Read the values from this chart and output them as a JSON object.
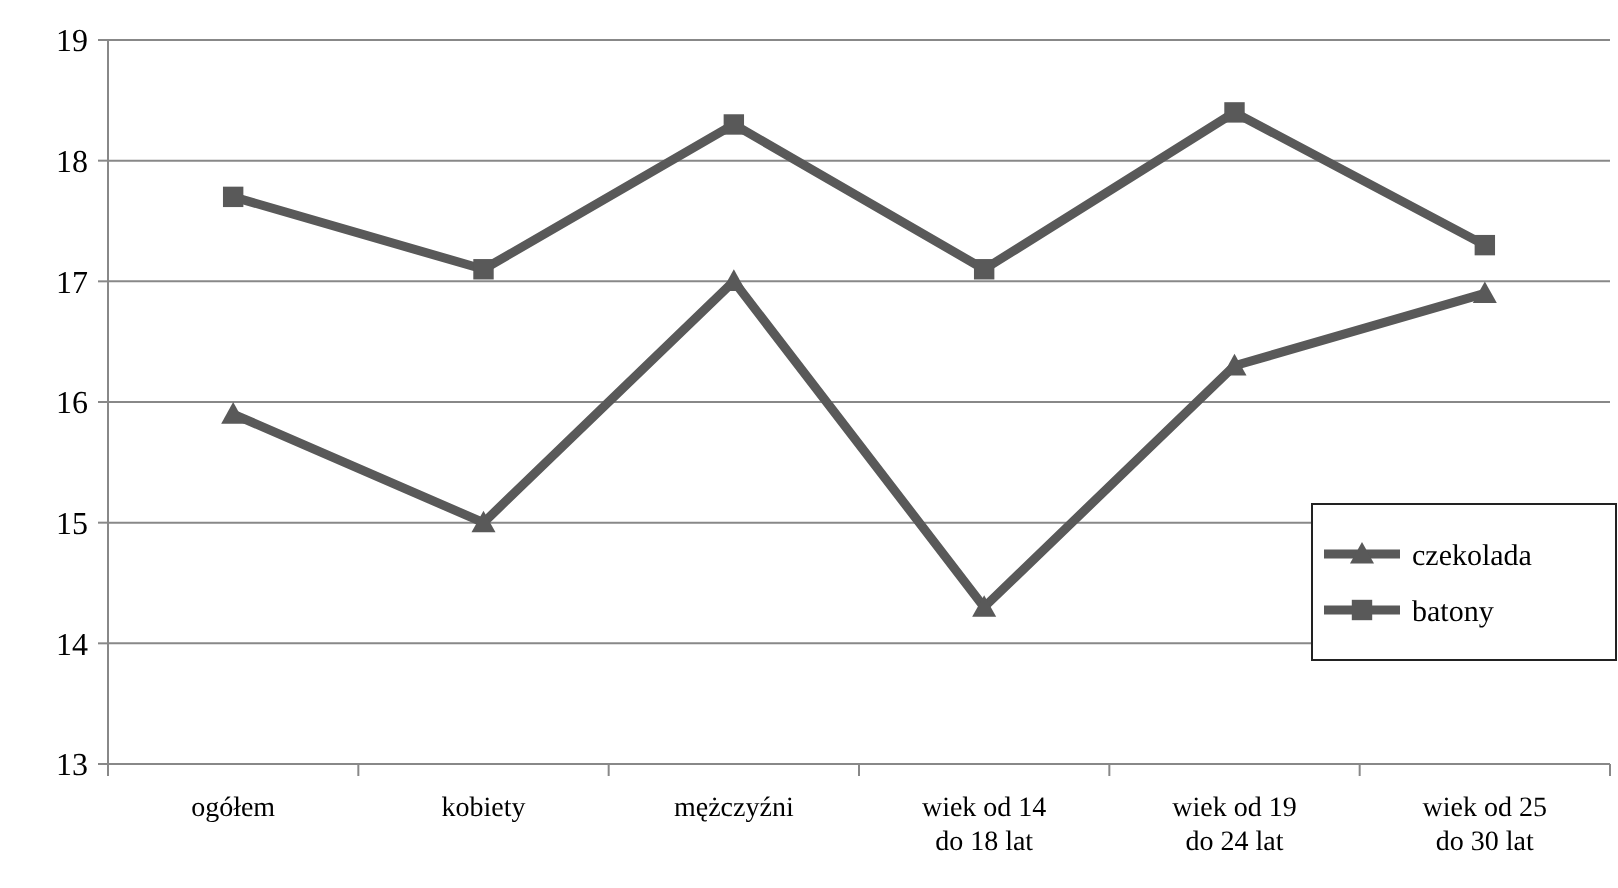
{
  "chart_data": {
    "type": "line",
    "categories": [
      "ogółem",
      "kobiety",
      "mężczyźni",
      "wiek od 14 do 18 lat",
      "wiek od 19 do 24 lat",
      "wiek od 25 do 30 lat"
    ],
    "series": [
      {
        "name": "czekolada",
        "color": "#595959",
        "marker": "triangle",
        "values": [
          15.9,
          15.0,
          17.0,
          14.3,
          16.3,
          16.9
        ]
      },
      {
        "name": "batony",
        "color": "#595959",
        "marker": "square",
        "values": [
          17.7,
          17.1,
          18.3,
          17.1,
          18.4,
          17.3
        ]
      }
    ],
    "ylim": [
      13,
      19
    ],
    "yticks": [
      13,
      14,
      15,
      16,
      17,
      18,
      19
    ],
    "grid": "y",
    "legend": "right",
    "line_style": "solid"
  }
}
